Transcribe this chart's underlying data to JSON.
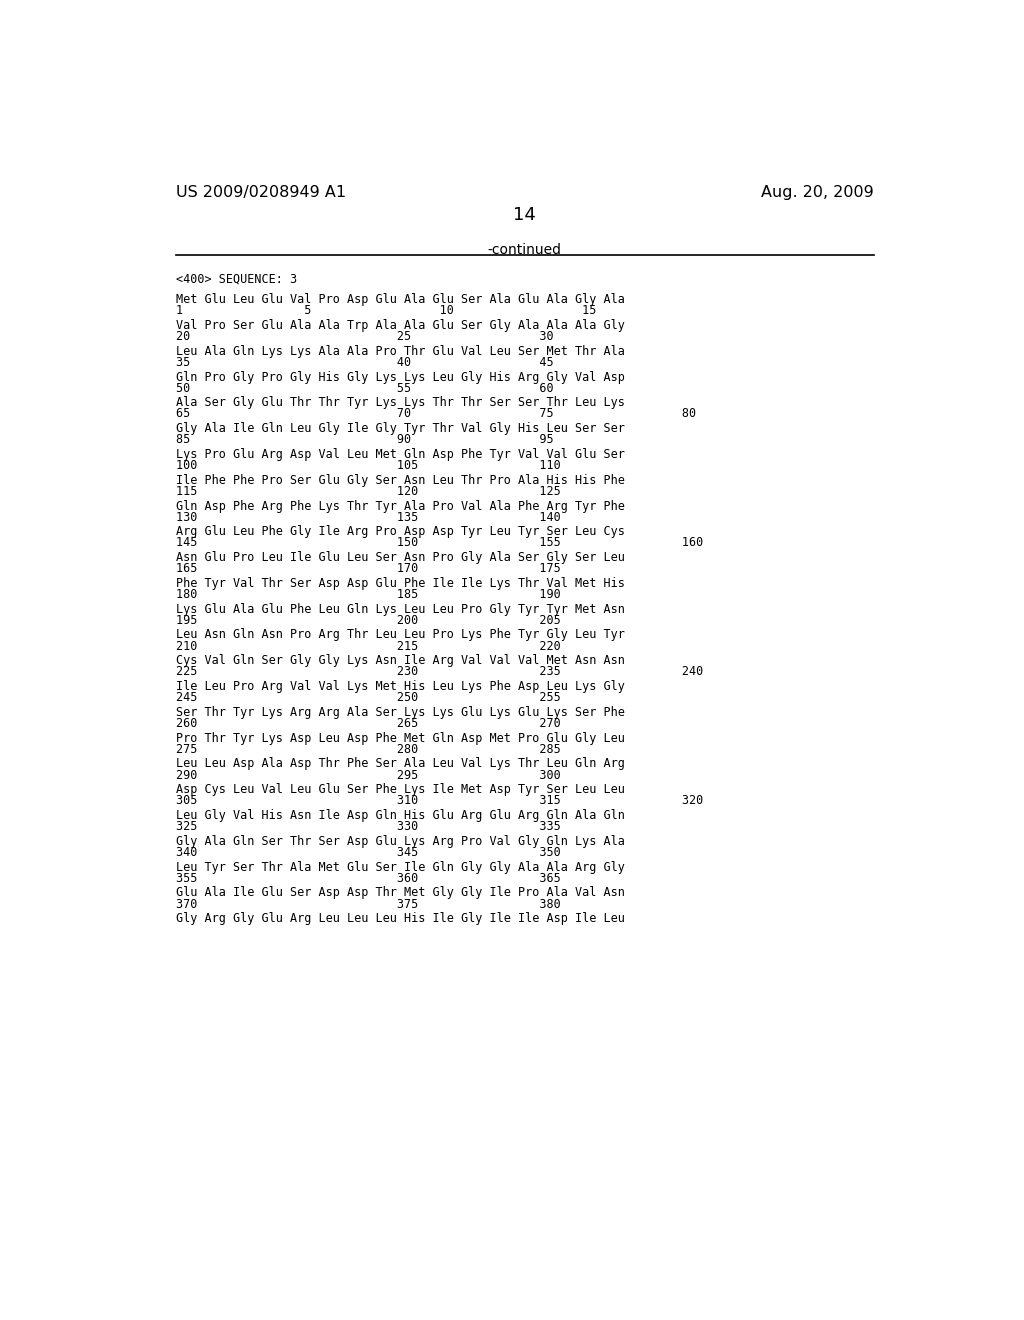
{
  "header_left": "US 2009/0208949 A1",
  "header_right": "Aug. 20, 2009",
  "page_number": "14",
  "continued_label": "-continued",
  "background_color": "#ffffff",
  "text_color": "#000000",
  "sequence_header": "<400> SEQUENCE: 3",
  "seq_blocks": [
    {
      "aa": "Met Glu Leu Glu Val Pro Asp Glu Ala Glu Ser Ala Glu Ala Gly Ala",
      "num": "1                 5                  10                  15"
    },
    {
      "aa": "Val Pro Ser Glu Ala Ala Trp Ala Ala Glu Ser Gly Ala Ala Ala Gly",
      "num": "20                             25                  30"
    },
    {
      "aa": "Leu Ala Gln Lys Lys Ala Ala Pro Thr Glu Val Leu Ser Met Thr Ala",
      "num": "35                             40                  45"
    },
    {
      "aa": "Gln Pro Gly Pro Gly His Gly Lys Lys Leu Gly His Arg Gly Val Asp",
      "num": "50                             55                  60"
    },
    {
      "aa": "Ala Ser Gly Glu Thr Thr Tyr Lys Lys Thr Thr Ser Ser Thr Leu Lys",
      "num": "65                             70                  75                  80"
    },
    {
      "aa": "Gly Ala Ile Gln Leu Gly Ile Gly Tyr Thr Val Gly His Leu Ser Ser",
      "num": "85                             90                  95"
    },
    {
      "aa": "Lys Pro Glu Arg Asp Val Leu Met Gln Asp Phe Tyr Val Val Glu Ser",
      "num": "100                            105                 110"
    },
    {
      "aa": "Ile Phe Phe Pro Ser Glu Gly Ser Asn Leu Thr Pro Ala His His Phe",
      "num": "115                            120                 125"
    },
    {
      "aa": "Gln Asp Phe Arg Phe Lys Thr Tyr Ala Pro Val Ala Phe Arg Tyr Phe",
      "num": "130                            135                 140"
    },
    {
      "aa": "Arg Glu Leu Phe Gly Ile Arg Pro Asp Asp Tyr Leu Tyr Ser Leu Cys",
      "num": "145                            150                 155                 160"
    },
    {
      "aa": "Asn Glu Pro Leu Ile Glu Leu Ser Asn Pro Gly Ala Ser Gly Ser Leu",
      "num": "165                            170                 175"
    },
    {
      "aa": "Phe Tyr Val Thr Ser Asp Asp Glu Phe Ile Ile Lys Thr Val Met His",
      "num": "180                            185                 190"
    },
    {
      "aa": "Lys Glu Ala Glu Phe Leu Gln Lys Leu Leu Pro Gly Tyr Tyr Met Asn",
      "num": "195                            200                 205"
    },
    {
      "aa": "Leu Asn Gln Asn Pro Arg Thr Leu Leu Pro Lys Phe Tyr Gly Leu Tyr",
      "num": "210                            215                 220"
    },
    {
      "aa": "Cys Val Gln Ser Gly Gly Lys Asn Ile Arg Val Val Val Met Asn Asn",
      "num": "225                            230                 235                 240"
    },
    {
      "aa": "Ile Leu Pro Arg Val Val Lys Met His Leu Lys Phe Asp Leu Lys Gly",
      "num": "245                            250                 255"
    },
    {
      "aa": "Ser Thr Tyr Lys Arg Arg Ala Ser Lys Lys Glu Lys Glu Lys Ser Phe",
      "num": "260                            265                 270"
    },
    {
      "aa": "Pro Thr Tyr Lys Asp Leu Asp Phe Met Gln Asp Met Pro Glu Gly Leu",
      "num": "275                            280                 285"
    },
    {
      "aa": "Leu Leu Asp Ala Asp Thr Phe Ser Ala Leu Val Lys Thr Leu Gln Arg",
      "num": "290                            295                 300"
    },
    {
      "aa": "Asp Cys Leu Val Leu Glu Ser Phe Lys Ile Met Asp Tyr Ser Leu Leu",
      "num": "305                            310                 315                 320"
    },
    {
      "aa": "Leu Gly Val His Asn Ile Asp Gln His Glu Arg Glu Arg Gln Ala Gln",
      "num": "325                            330                 335"
    },
    {
      "aa": "Gly Ala Gln Ser Thr Ser Asp Glu Lys Arg Pro Val Gly Gln Lys Ala",
      "num": "340                            345                 350"
    },
    {
      "aa": "Leu Tyr Ser Thr Ala Met Glu Ser Ile Gln Gly Gly Ala Ala Arg Gly",
      "num": "355                            360                 365"
    },
    {
      "aa": "Glu Ala Ile Glu Ser Asp Asp Thr Met Gly Gly Ile Pro Ala Val Asn",
      "num": "370                            375                 380"
    },
    {
      "aa": "Gly Arg Gly Glu Arg Leu Leu Leu His Ile Gly Ile Ile Asp Ile Leu",
      "num": ""
    }
  ]
}
